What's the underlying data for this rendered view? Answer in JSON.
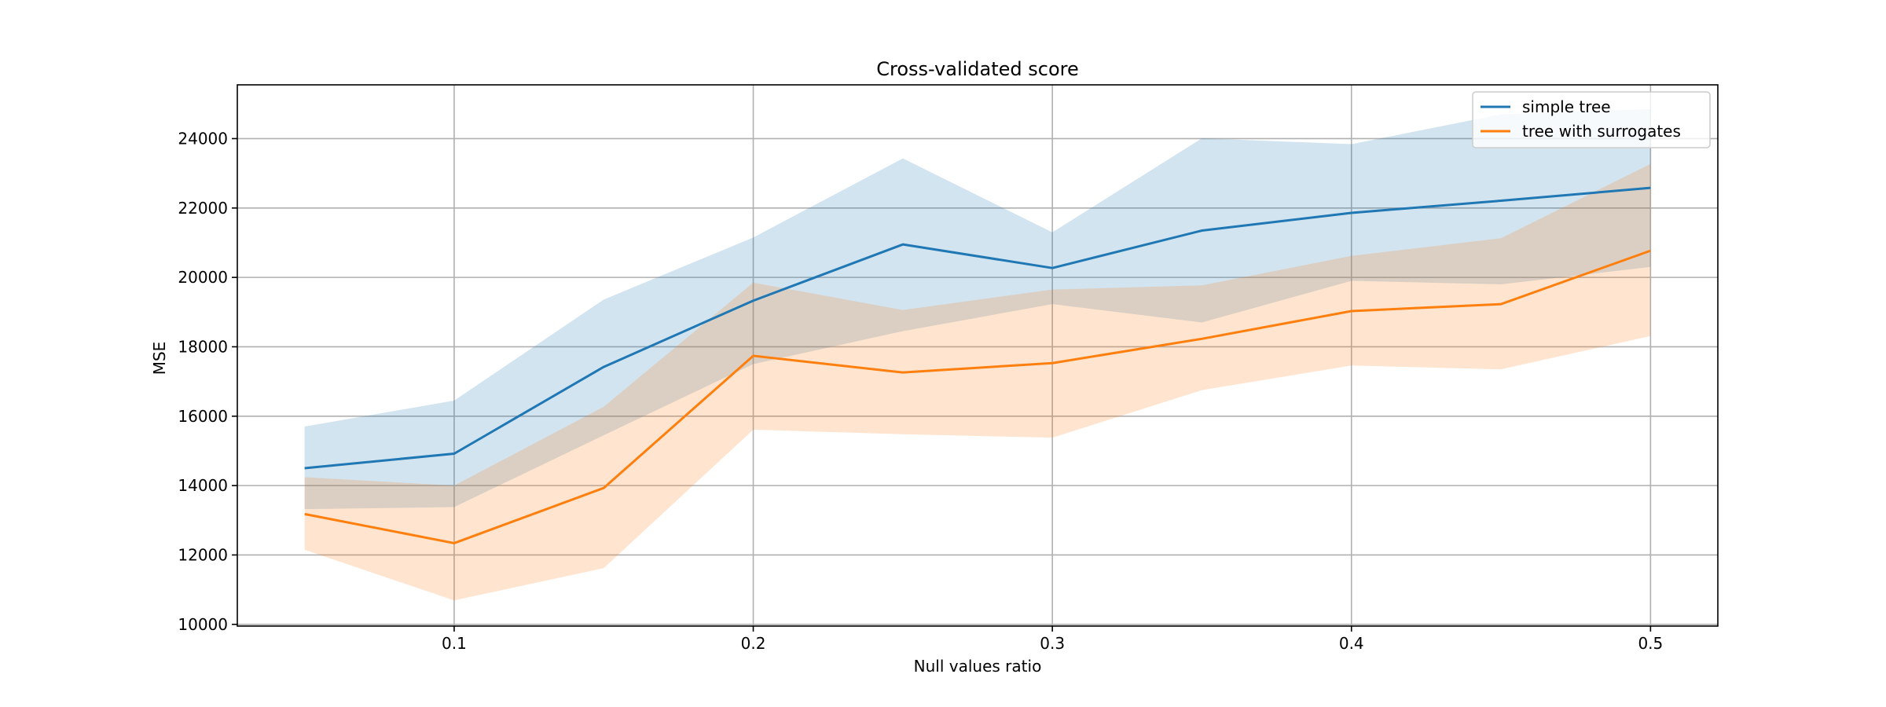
{
  "chart_data": {
    "type": "line",
    "title": "Cross-validated score",
    "xlabel": "Null values ratio",
    "ylabel": "MSE",
    "x": [
      0.05,
      0.1,
      0.15,
      0.2,
      0.25,
      0.3,
      0.35,
      0.4,
      0.45,
      0.5
    ],
    "xlim": [
      0.0275,
      0.5225
    ],
    "ylim": [
      9950,
      25550
    ],
    "xticks": [
      0.1,
      0.2,
      0.3,
      0.4,
      0.5
    ],
    "xtick_labels": [
      "0.1",
      "0.2",
      "0.3",
      "0.4",
      "0.5"
    ],
    "yticks": [
      10000,
      12000,
      14000,
      16000,
      18000,
      20000,
      22000,
      24000
    ],
    "ytick_labels": [
      "10000",
      "12000",
      "14000",
      "16000",
      "18000",
      "20000",
      "22000",
      "24000"
    ],
    "grid": true,
    "legend_position": "top-right",
    "series": [
      {
        "name": "simple tree",
        "color": "#1f77b4",
        "values": [
          14500,
          14920,
          17420,
          19330,
          20950,
          20270,
          21350,
          21860,
          22210,
          22580
        ],
        "lower": [
          13320,
          13380,
          15450,
          17500,
          18450,
          19230,
          18700,
          19900,
          19800,
          20300
        ],
        "upper": [
          15700,
          16450,
          19360,
          21150,
          23430,
          21300,
          24010,
          23840,
          24700,
          24850
        ]
      },
      {
        "name": "tree with surrogates",
        "color": "#ff7f0e",
        "values": [
          13180,
          12340,
          13930,
          17740,
          17260,
          17530,
          18230,
          19030,
          19230,
          20770
        ],
        "lower": [
          12150,
          10690,
          11620,
          15610,
          15480,
          15380,
          16750,
          17460,
          17350,
          18310
        ],
        "upper": [
          14240,
          14000,
          16270,
          19850,
          19060,
          19650,
          19770,
          20620,
          21130,
          23270
        ]
      }
    ]
  }
}
